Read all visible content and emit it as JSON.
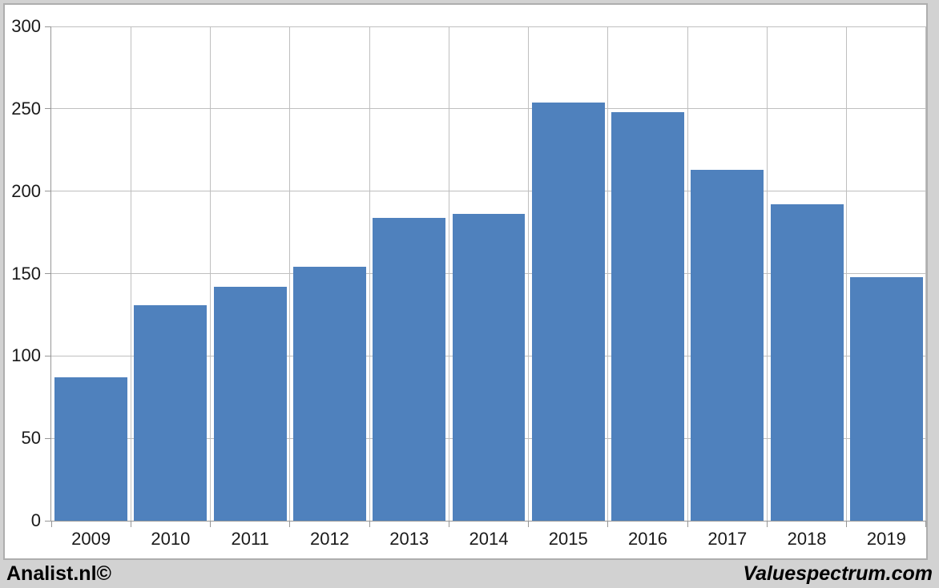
{
  "page": {
    "background_color": "#d2d2d2",
    "footer_left": "Analist.nl©",
    "footer_right": "Valuespectrum.com"
  },
  "chart_data": {
    "type": "bar",
    "title": "",
    "xlabel": "",
    "ylabel": "",
    "categories": [
      "2009",
      "2010",
      "2011",
      "2012",
      "2013",
      "2014",
      "2015",
      "2016",
      "2017",
      "2018",
      "2019"
    ],
    "values": [
      87,
      131,
      142,
      154,
      184,
      186,
      254,
      248,
      213,
      192,
      148
    ],
    "ylim": [
      0,
      300
    ],
    "yticks": [
      0,
      50,
      100,
      150,
      200,
      250,
      300
    ],
    "grid": true,
    "legend": "none",
    "bar_color": "#4f81bd",
    "gridline_color": "#bfbfbf",
    "axis_color": "#969696",
    "plot_background": "#ffffff",
    "chart_background": "#ffffff"
  }
}
